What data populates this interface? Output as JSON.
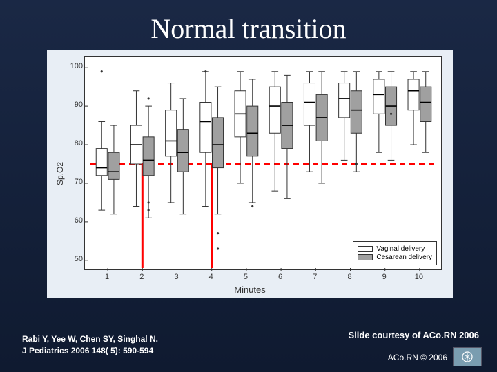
{
  "title": "Normal transition",
  "citation_line1": "Rabi Y, Yee W, Chen SY, Singhal N.",
  "citation_line2": "J Pediatrics 2006 148( 5): 590-594",
  "courtesy": "Slide courtesy of ACo.RN 2006",
  "copyright": "ACo.RN © 2006",
  "chart": {
    "type": "boxplot",
    "x_label": "Minutes",
    "y_label": "Sp.O2",
    "x_ticks": [
      1,
      2,
      3,
      4,
      5,
      6,
      7,
      8,
      9,
      10
    ],
    "y_ticks": [
      50,
      60,
      70,
      80,
      90,
      100
    ],
    "ylim": [
      48,
      102
    ],
    "background_color": "#e8eef5",
    "plot_bg": "#ffffff",
    "axis_color": "#333333",
    "tick_fontsize": 11,
    "label_fontsize": 13,
    "legend": {
      "items": [
        {
          "label": "Vaginal delivery",
          "fill": "#ffffff",
          "border": "#333333"
        },
        {
          "label": "Cesarean delivery",
          "fill": "#a0a0a0",
          "border": "#333333"
        }
      ]
    },
    "reference_line": {
      "y": 75,
      "color": "#ff0000",
      "width": 3,
      "dash": "8,6"
    },
    "red_markers": [
      {
        "x_minute": 2,
        "from_y": 48,
        "to_y": 75
      },
      {
        "x_minute": 4,
        "from_y": 48,
        "to_y": 75
      }
    ],
    "box_width": 0.32,
    "whisker_color": "#333333",
    "median_color": "#000000",
    "outlier_color": "#333333",
    "series": [
      {
        "name": "Vaginal delivery",
        "fill": "#ffffff",
        "boxes": [
          {
            "x": 1,
            "q1": 72,
            "median": 74,
            "q3": 79,
            "lo": 63,
            "hi": 86,
            "outliers": [
              99
            ]
          },
          {
            "x": 2,
            "q1": 75,
            "median": 80,
            "q3": 85,
            "lo": 64,
            "hi": 94,
            "outliers": []
          },
          {
            "x": 3,
            "q1": 77,
            "median": 81,
            "q3": 89,
            "lo": 65,
            "hi": 96,
            "outliers": []
          },
          {
            "x": 4,
            "q1": 78,
            "median": 86,
            "q3": 91,
            "lo": 64,
            "hi": 99,
            "outliers": [
              99
            ]
          },
          {
            "x": 5,
            "q1": 82,
            "median": 88,
            "q3": 94,
            "lo": 70,
            "hi": 99,
            "outliers": []
          },
          {
            "x": 6,
            "q1": 83,
            "median": 90,
            "q3": 95,
            "lo": 68,
            "hi": 99,
            "outliers": []
          },
          {
            "x": 7,
            "q1": 85,
            "median": 91,
            "q3": 96,
            "lo": 73,
            "hi": 99,
            "outliers": []
          },
          {
            "x": 8,
            "q1": 87,
            "median": 92,
            "q3": 96,
            "lo": 76,
            "hi": 99,
            "outliers": []
          },
          {
            "x": 9,
            "q1": 88,
            "median": 93,
            "q3": 97,
            "lo": 78,
            "hi": 99,
            "outliers": []
          },
          {
            "x": 10,
            "q1": 89,
            "median": 94,
            "q3": 97,
            "lo": 80,
            "hi": 99,
            "outliers": []
          }
        ]
      },
      {
        "name": "Cesarean delivery",
        "fill": "#a0a0a0",
        "boxes": [
          {
            "x": 1,
            "q1": 71,
            "median": 73,
            "q3": 78,
            "lo": 62,
            "hi": 85,
            "outliers": []
          },
          {
            "x": 2,
            "q1": 72,
            "median": 76,
            "q3": 82,
            "lo": 61,
            "hi": 90,
            "outliers": [
              92,
              65,
              63
            ]
          },
          {
            "x": 3,
            "q1": 73,
            "median": 78,
            "q3": 84,
            "lo": 62,
            "hi": 92,
            "outliers": []
          },
          {
            "x": 4,
            "q1": 74,
            "median": 80,
            "q3": 87,
            "lo": 62,
            "hi": 95,
            "outliers": [
              57,
              53
            ]
          },
          {
            "x": 5,
            "q1": 77,
            "median": 83,
            "q3": 90,
            "lo": 65,
            "hi": 97,
            "outliers": [
              64
            ]
          },
          {
            "x": 6,
            "q1": 79,
            "median": 85,
            "q3": 91,
            "lo": 66,
            "hi": 98,
            "outliers": []
          },
          {
            "x": 7,
            "q1": 81,
            "median": 87,
            "q3": 93,
            "lo": 70,
            "hi": 99,
            "outliers": []
          },
          {
            "x": 8,
            "q1": 83,
            "median": 89,
            "q3": 94,
            "lo": 73,
            "hi": 99,
            "outliers": [
              75
            ]
          },
          {
            "x": 9,
            "q1": 85,
            "median": 90,
            "q3": 95,
            "lo": 76,
            "hi": 99,
            "outliers": [
              88
            ]
          },
          {
            "x": 10,
            "q1": 86,
            "median": 91,
            "q3": 95,
            "lo": 78,
            "hi": 99,
            "outliers": []
          }
        ]
      }
    ]
  }
}
